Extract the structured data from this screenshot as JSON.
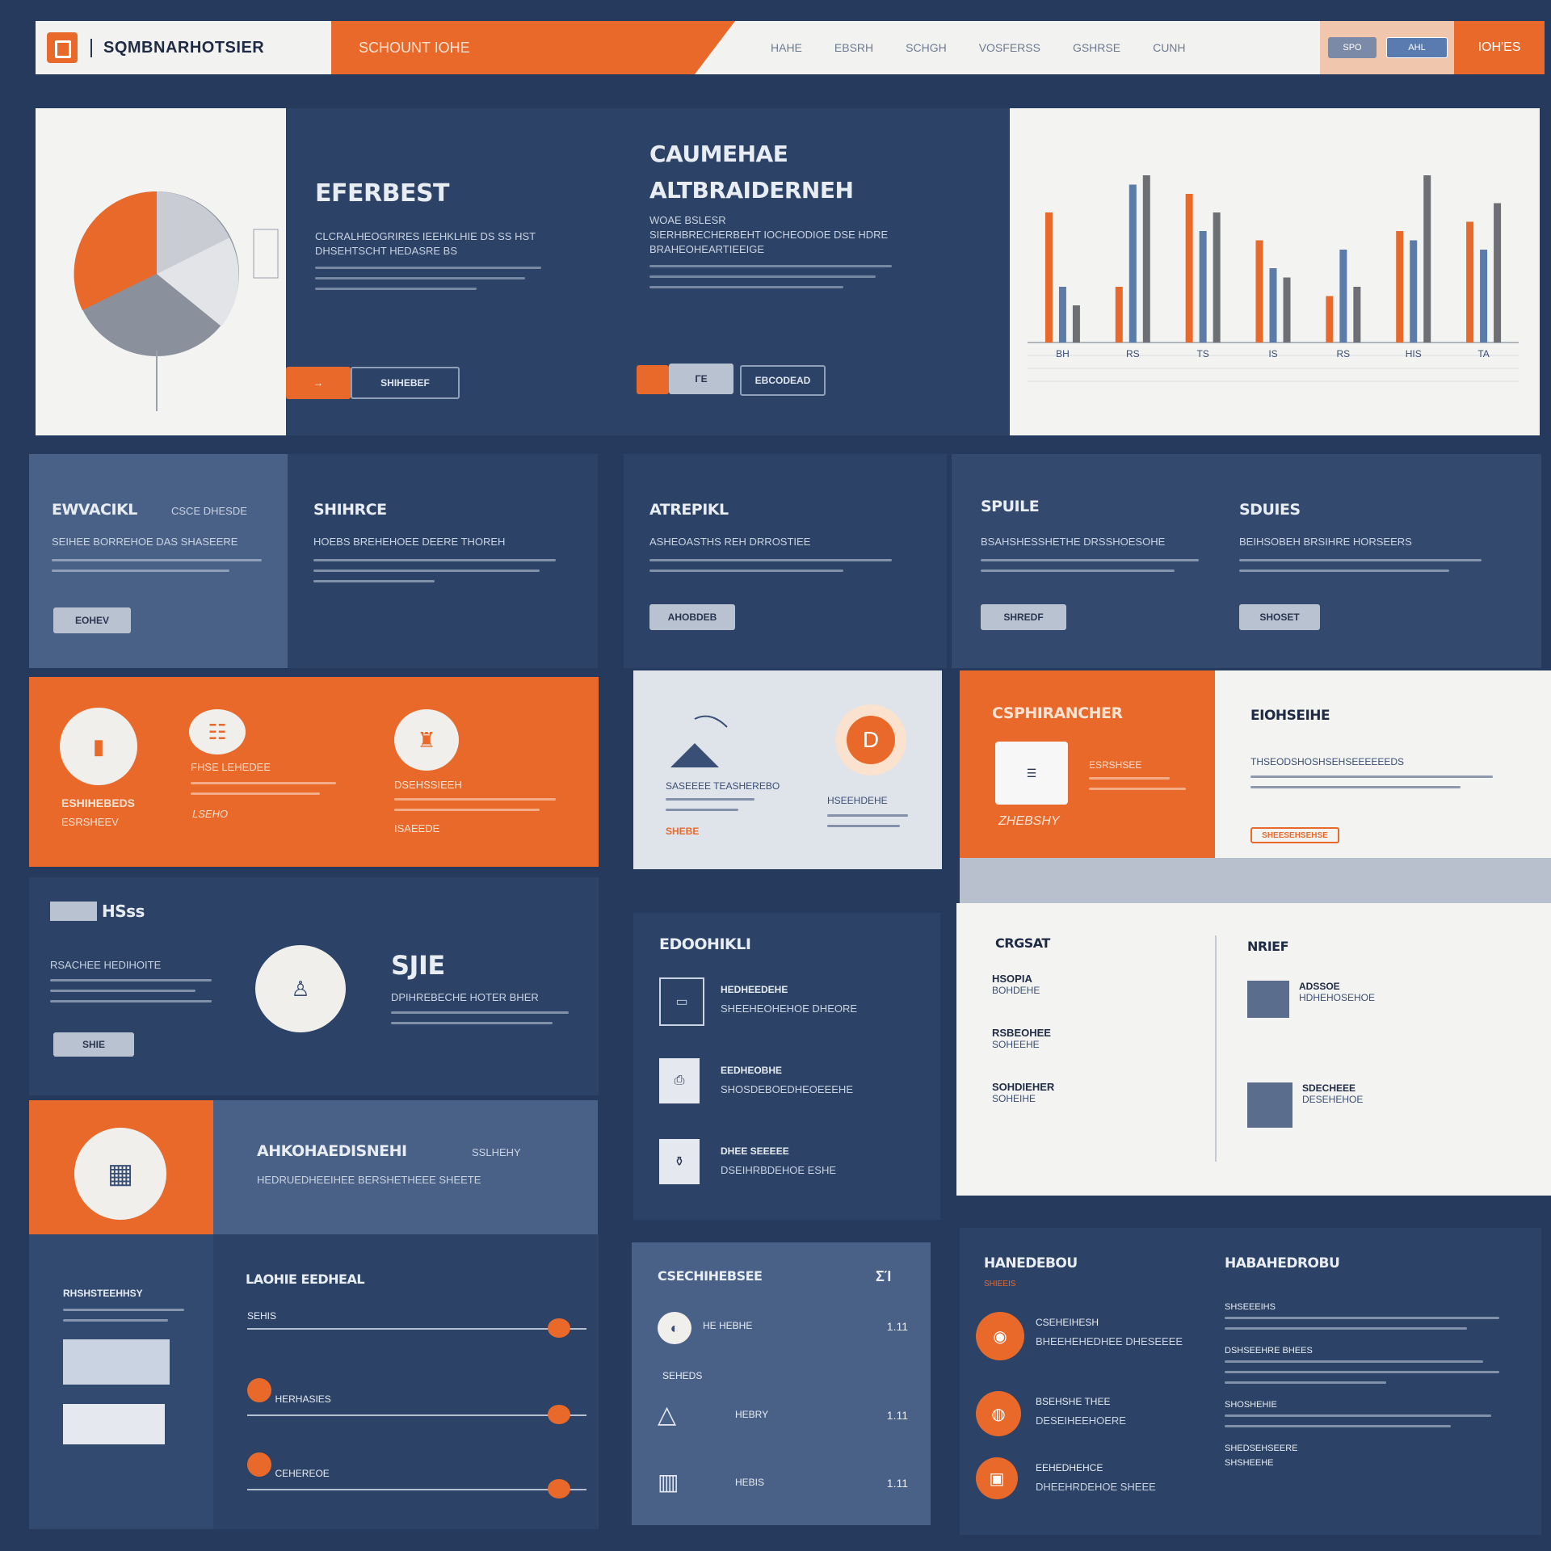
{
  "header": {
    "brand": "SQMBNARHOTSIER",
    "banner_text": "SCHOUNT IOHE",
    "nav": [
      "HAHE",
      "EBSRH",
      "SCHGH",
      "VOSFERSS",
      "GSHRSE",
      "CUNH"
    ],
    "pill_1": "SPO",
    "pill_2": "AHL",
    "cta": "IOH'ES"
  },
  "hero": {
    "title_left": "EFERBEST",
    "body_left": "CLCRALHEOGRIRES IEEHKLHIE DS SS HST DHSEHTSCHT HEDASRE BS",
    "button_left_primary": "→",
    "button_left_secondary": "SHIHEBEF",
    "title_right_1": "CAUMEHAE",
    "title_right_2": "ALTBRAIDERNEH",
    "subtitle_right": "WOAE BSLESR",
    "body_right": "SIERHBRECHERBEHT IOCHEODIOE DSE HDRE BRAHEOHEARTIEEIGE",
    "button_right_primary": "ΓΕ",
    "button_right_secondary": "EBCODEAD"
  },
  "chart_data": {
    "type": "bar",
    "categories": [
      "BH",
      "RS",
      "TS",
      "IS",
      "RS",
      "HIS",
      "TA"
    ],
    "series": [
      {
        "color": "#e8692a",
        "values": [
          70,
          30,
          80,
          55,
          25,
          60,
          65
        ]
      },
      {
        "color": "#5b7ca9",
        "values": [
          30,
          85,
          60,
          40,
          50,
          55,
          50
        ]
      },
      {
        "color": "#6d6f74",
        "values": [
          20,
          90,
          70,
          35,
          30,
          90,
          75
        ]
      }
    ],
    "ylim": [
      0,
      100
    ],
    "grid": true
  },
  "feature_row": [
    {
      "title": "EWVACIKL",
      "tag": "CSCE DHESDE",
      "text": "SEIHEE BORREHOE DAS SHASEERE",
      "button": "EOHEV"
    },
    {
      "title": "SHIHRCE",
      "tag": "",
      "text": "HOEBS BREHEHOEE DEERE THOREH",
      "button": ""
    },
    {
      "title": "ATREPIKL",
      "tag": "",
      "text": "ASHEOASTHS REH DRROSTIEE",
      "button": "AHOBDEB"
    },
    {
      "title": "SPUILE",
      "tag": "",
      "text": "BSAHSHESSHETHE DRSSHOESOHE",
      "button": "SHREDF"
    },
    {
      "title": "SDUIES",
      "tag": "",
      "text": "BEIHSOBEH BRSIHRE HORSEERS",
      "button": "SHOSET"
    }
  ],
  "orange_strip": {
    "items": [
      {
        "label": "ESHIHEBEDS",
        "sub": "ESRSHEEV"
      },
      {
        "label": "FHSE LEHEDEE",
        "sub": "LSEHO"
      },
      {
        "label": "DSEHSSIEEH",
        "sub": "ISAEEDE"
      }
    ]
  },
  "grey_card": {
    "left_text": "SASEEEE TEASHEREBO",
    "right_text": "HSEEHDEHE",
    "accent": "SHEBE"
  },
  "promo": {
    "title": "CSPHIRANCHER",
    "caption": "ESRSHSEE",
    "note_label": "ZHEBSHY",
    "right_title": "EIOHSEIHE",
    "right_text": "THSEODSHOSHSEHSEEEEEEDS",
    "right_badge": "SHEESEHSEHSE"
  },
  "mass_block": {
    "title": "HSss",
    "text": "RSACHEE HEDIHOITE",
    "button": "SHIE",
    "badge_title": "SJIE",
    "badge_text": "DPIHREBECHE HOTER BHER"
  },
  "list_block": {
    "title": "EDOOHIKLI",
    "items": [
      {
        "title": "HEDHEEDEHE",
        "text": "SHEEHEOHEHOE DHEORE"
      },
      {
        "title": "EEDHEOBHE",
        "text": "SHOSDEBOEDHEOEEEHE"
      },
      {
        "title": "DHEE SEEEEE",
        "text": "DSEIHRBDEHOE ESHE"
      }
    ]
  },
  "report": {
    "title_left": "CRGSAT",
    "left_rows": [
      {
        "label": "HSOPIA",
        "value": "BOHDEHE"
      },
      {
        "label": "RSBEOHEE",
        "value": "SOHEEHE"
      },
      {
        "label": "SOHDIEHER",
        "value": "SOHEIHE"
      }
    ],
    "title_right": "NRIEF",
    "right_rows": [
      {
        "label": "ADSSOE",
        "value": "HDHEHOSEHOE"
      },
      {
        "label": "SDECHEEE",
        "value": "DESEHEHOE"
      }
    ]
  },
  "banner_row": {
    "title": "AHKOHAEDISNEHI",
    "tag": "SSLHEHY",
    "text": "HEDRUEDHEEIHEE BERSHETHEEE SHEETE"
  },
  "progress": {
    "sidebar_title": "RHSHSTEEHHSY",
    "title": "LAOHIE EEDHEAL",
    "rows": [
      {
        "label": "SEHIS",
        "value": 0.92
      },
      {
        "label": "HERHASIES",
        "value": 0.92
      },
      {
        "label": "CEHEREOE",
        "value": 0.92
      }
    ]
  },
  "stats": {
    "title": "CSECHIHEBSEE",
    "badge": "ΣΊ",
    "rows": [
      {
        "label": "HE HEBHE",
        "value": "1.11"
      },
      {
        "label": "SEHEDS",
        "value": ""
      },
      {
        "label": "HEBRY",
        "value": "1.11"
      },
      {
        "label": "HEBIS",
        "value": "1.11"
      }
    ]
  },
  "news_left": {
    "title": "HANEDEBOU",
    "sub": "SHIEEIS",
    "items": [
      {
        "title": "CSEHEIHESH",
        "text": "BHEEHEHEDHEE DHESEEEE"
      },
      {
        "title": "BSEHSHE THEE",
        "text": "DESEIHEEHOERE"
      },
      {
        "title": "EEHEDHEHCE",
        "text": "DHEEHRDEHOE SHEEE"
      }
    ]
  },
  "news_right": {
    "title": "HABAHEDROBU",
    "paragraphs": [
      "SHSEEEIHS",
      "DSHSEEHRE BHEES",
      "SHOSHEHIE",
      "SHEDSEHSEERE",
      "SHSHEEHE"
    ]
  }
}
